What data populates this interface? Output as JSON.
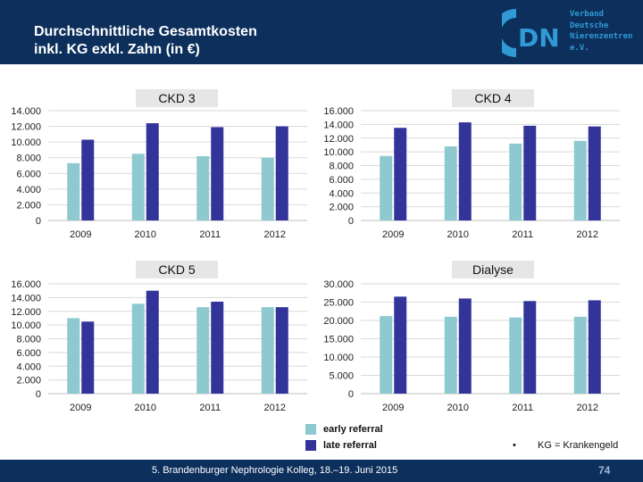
{
  "header": {
    "title_line1": "Durchschnittliche Gesamtkosten",
    "title_line2": "inkl. KG exkl. Zahn (in €)",
    "logo_letters": "DN",
    "logo_lines": [
      "Verband",
      "Deutsche",
      "Nierenzentren",
      "e.V."
    ]
  },
  "colors": {
    "early": "#8ec9d0",
    "late": "#33349a",
    "header_bg": "#0d2f5c",
    "label_bg": "#e6e6e6"
  },
  "legend": {
    "early_label": "early referral",
    "late_label": "late referral"
  },
  "note": {
    "bullet": "•",
    "text": "KG = Krankengeld"
  },
  "footer": {
    "text": "5. Brandenburger Nephrologie Kolleg, 18.–19. Juni 2015",
    "page": "74"
  },
  "chart_data": [
    {
      "type": "bar",
      "title": "CKD 3",
      "categories": [
        "2009",
        "2010",
        "2011",
        "2012"
      ],
      "ylim": [
        0,
        14000
      ],
      "yticks": [
        0,
        2000,
        4000,
        6000,
        8000,
        10000,
        12000,
        14000
      ],
      "ytick_labels": [
        "0",
        "2.000",
        "4.000",
        "6.000",
        "8.000",
        "10.000",
        "12.000",
        "14.000"
      ],
      "series": [
        {
          "name": "early referral",
          "values": [
            7300,
            8500,
            8200,
            8000
          ]
        },
        {
          "name": "late referral",
          "values": [
            10300,
            12400,
            11900,
            12000
          ]
        }
      ]
    },
    {
      "type": "bar",
      "title": "CKD 4",
      "categories": [
        "2009",
        "2010",
        "2011",
        "2012"
      ],
      "ylim": [
        0,
        16000
      ],
      "yticks": [
        0,
        2000,
        4000,
        6000,
        8000,
        10000,
        12000,
        14000,
        16000
      ],
      "ytick_labels": [
        "0",
        "2.000",
        "4.000",
        "6.000",
        "8.000",
        "10.000",
        "12.000",
        "14.000",
        "16.000"
      ],
      "series": [
        {
          "name": "early referral",
          "values": [
            9400,
            10800,
            11200,
            11600
          ]
        },
        {
          "name": "late referral",
          "values": [
            13500,
            14300,
            13800,
            13700
          ]
        }
      ]
    },
    {
      "type": "bar",
      "title": "CKD 5",
      "categories": [
        "2009",
        "2010",
        "2011",
        "2012"
      ],
      "ylim": [
        0,
        16000
      ],
      "yticks": [
        0,
        2000,
        4000,
        6000,
        8000,
        10000,
        12000,
        14000,
        16000
      ],
      "ytick_labels": [
        "0",
        "2.000",
        "4.000",
        "6.000",
        "8.000",
        "10.000",
        "12.000",
        "14.000",
        "16.000"
      ],
      "series": [
        {
          "name": "early referral",
          "values": [
            11000,
            13100,
            12600,
            12600
          ]
        },
        {
          "name": "late referral",
          "values": [
            10500,
            15000,
            13400,
            12600
          ]
        }
      ]
    },
    {
      "type": "bar",
      "title": "Dialyse",
      "categories": [
        "2009",
        "2010",
        "2011",
        "2012"
      ],
      "ylim": [
        0,
        30000
      ],
      "yticks": [
        0,
        5000,
        10000,
        15000,
        20000,
        25000,
        30000
      ],
      "ytick_labels": [
        "0",
        "5.000",
        "10.000",
        "15.000",
        "20.000",
        "25.000",
        "30.000"
      ],
      "series": [
        {
          "name": "early referral",
          "values": [
            21200,
            21000,
            20800,
            21000
          ]
        },
        {
          "name": "late referral",
          "values": [
            26500,
            26000,
            25300,
            25500
          ]
        }
      ]
    }
  ]
}
